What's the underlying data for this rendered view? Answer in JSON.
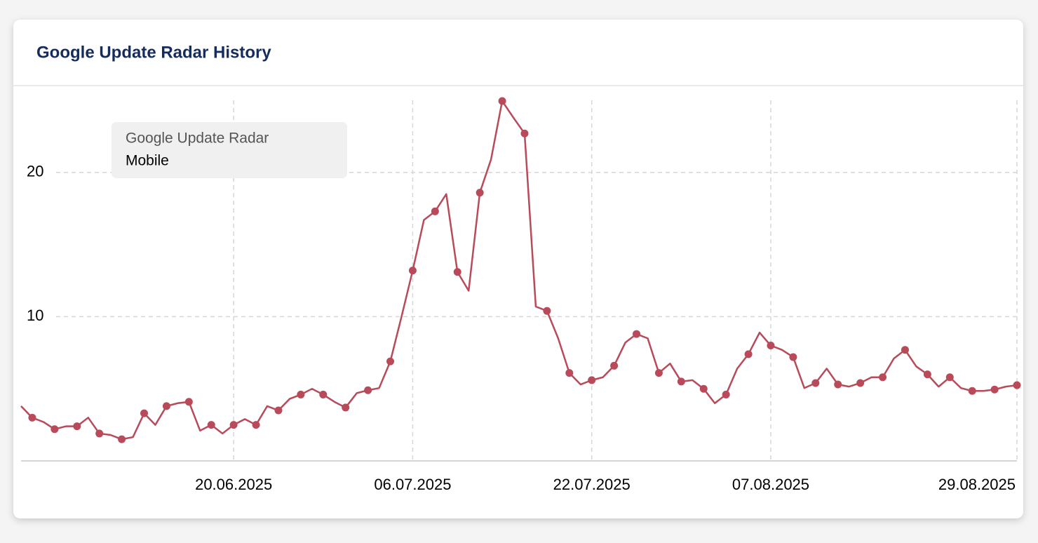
{
  "chart_data": {
    "type": "line",
    "title": "Google Update Radar History",
    "legend_title": "Google Update Radar",
    "x": [
      "01.06.2025",
      "02.06.2025",
      "03.06.2025",
      "04.06.2025",
      "05.06.2025",
      "06.06.2025",
      "07.06.2025",
      "08.06.2025",
      "09.06.2025",
      "10.06.2025",
      "11.06.2025",
      "12.06.2025",
      "13.06.2025",
      "14.06.2025",
      "15.06.2025",
      "16.06.2025",
      "17.06.2025",
      "18.06.2025",
      "19.06.2025",
      "20.06.2025",
      "21.06.2025",
      "22.06.2025",
      "23.06.2025",
      "24.06.2025",
      "25.06.2025",
      "26.06.2025",
      "27.06.2025",
      "28.06.2025",
      "29.06.2025",
      "30.06.2025",
      "01.07.2025",
      "02.07.2025",
      "03.07.2025",
      "04.07.2025",
      "05.07.2025",
      "06.07.2025",
      "07.07.2025",
      "08.07.2025",
      "09.07.2025",
      "10.07.2025",
      "11.07.2025",
      "12.07.2025",
      "13.07.2025",
      "14.07.2025",
      "15.07.2025",
      "16.07.2025",
      "17.07.2025",
      "18.07.2025",
      "19.07.2025",
      "20.07.2025",
      "21.07.2025",
      "22.07.2025",
      "23.07.2025",
      "24.07.2025",
      "25.07.2025",
      "26.07.2025",
      "27.07.2025",
      "28.07.2025",
      "29.07.2025",
      "30.07.2025",
      "31.07.2025",
      "01.08.2025",
      "02.08.2025",
      "03.08.2025",
      "04.08.2025",
      "05.08.2025",
      "06.08.2025",
      "07.08.2025",
      "08.08.2025",
      "09.08.2025",
      "10.08.2025",
      "11.08.2025",
      "12.08.2025",
      "13.08.2025",
      "14.08.2025",
      "15.08.2025",
      "16.08.2025",
      "17.08.2025",
      "18.08.2025",
      "19.08.2025",
      "20.08.2025",
      "21.08.2025",
      "22.08.2025",
      "23.08.2025",
      "24.08.2025",
      "25.08.2025",
      "26.08.2025",
      "27.08.2025",
      "28.08.2025",
      "29.08.2025"
    ],
    "series": [
      {
        "name": "Mobile",
        "color": "#b84a5a",
        "values": [
          3.8,
          3.0,
          2.7,
          2.2,
          2.4,
          2.4,
          3.0,
          1.9,
          1.8,
          1.5,
          1.65,
          3.3,
          2.5,
          3.8,
          4.0,
          4.1,
          2.1,
          2.5,
          1.9,
          2.5,
          2.9,
          2.5,
          3.8,
          3.5,
          4.3,
          4.6,
          5.0,
          4.6,
          4.1,
          3.7,
          4.7,
          4.9,
          5.05,
          6.9,
          10.0,
          13.2,
          16.7,
          17.3,
          18.5,
          13.1,
          11.8,
          18.6,
          20.9,
          24.95,
          23.8,
          22.7,
          10.7,
          10.4,
          8.5,
          6.1,
          5.3,
          5.6,
          5.8,
          6.6,
          8.2,
          8.8,
          8.5,
          6.1,
          6.75,
          5.5,
          5.6,
          5.0,
          4.0,
          4.6,
          6.4,
          7.4,
          8.9,
          8.0,
          7.7,
          7.2,
          5.05,
          5.4,
          6.4,
          5.3,
          5.15,
          5.4,
          5.8,
          5.8,
          7.1,
          7.7,
          6.55,
          6.0,
          5.15,
          5.8,
          5.05,
          4.85,
          4.85,
          4.95,
          5.15,
          5.25
        ]
      }
    ],
    "xlim": [
      "01.06.2025",
      "29.08.2025"
    ],
    "xticks": [
      "20.06.2025",
      "06.07.2025",
      "22.07.2025",
      "07.08.2025",
      "29.08.2025"
    ],
    "ylim": [
      0,
      25
    ],
    "yticks": [
      10,
      20
    ],
    "grid": true
  }
}
